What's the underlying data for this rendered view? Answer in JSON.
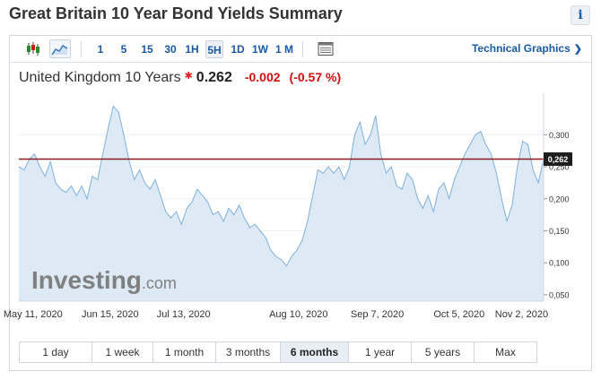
{
  "page": {
    "title": "Great Britain 10 Year Bond Yields Summary",
    "info_label": "i"
  },
  "toolbar": {
    "chart_type_icons": [
      "candlestick-icon",
      "area-chart-icon"
    ],
    "active_chart_type": "area-chart-icon",
    "timeframes": [
      "1",
      "5",
      "15",
      "30",
      "1H",
      "5H",
      "1D",
      "1W",
      "1 M"
    ],
    "active_timeframe": "5H",
    "table_icon": "table-icon",
    "technical_link": "Technical Graphics",
    "technical_chevron": "❯"
  },
  "quote": {
    "instrument": "United Kingdom 10 Years",
    "star": "✱",
    "last": "0.262",
    "change": "-0.002",
    "change_pct": "(-0.57 %)"
  },
  "watermark": {
    "brand": "Investing",
    "suffix": ".com"
  },
  "chart_data": {
    "type": "area",
    "y_ticks": [
      "0,300",
      "0,250",
      "0,200",
      "0,150",
      "0,100",
      "0,050"
    ],
    "y_tick_values": [
      0.3,
      0.25,
      0.2,
      0.15,
      0.1,
      0.05
    ],
    "ylim": [
      0.04,
      0.365
    ],
    "x_ticks": [
      "May 11, 2020",
      "Jun 15, 2020",
      "Jul 13, 2020",
      "Aug 10, 2020",
      "Sep 7, 2020",
      "Oct 5, 2020",
      "Nov 2, 2020"
    ],
    "x_tick_positions": [
      0.027,
      0.174,
      0.314,
      0.533,
      0.683,
      0.839,
      0.958
    ],
    "current_value": 0.262,
    "current_label": "0,262",
    "series": [
      {
        "points": [
          [
            0.0,
            0.25
          ],
          [
            0.01,
            0.245
          ],
          [
            0.02,
            0.262
          ],
          [
            0.03,
            0.27
          ],
          [
            0.04,
            0.25
          ],
          [
            0.05,
            0.235
          ],
          [
            0.06,
            0.258
          ],
          [
            0.07,
            0.225
          ],
          [
            0.08,
            0.215
          ],
          [
            0.09,
            0.21
          ],
          [
            0.1,
            0.22
          ],
          [
            0.11,
            0.205
          ],
          [
            0.12,
            0.22
          ],
          [
            0.13,
            0.2
          ],
          [
            0.14,
            0.235
          ],
          [
            0.15,
            0.23
          ],
          [
            0.16,
            0.27
          ],
          [
            0.17,
            0.31
          ],
          [
            0.18,
            0.345
          ],
          [
            0.19,
            0.335
          ],
          [
            0.2,
            0.3
          ],
          [
            0.21,
            0.26
          ],
          [
            0.22,
            0.23
          ],
          [
            0.23,
            0.245
          ],
          [
            0.24,
            0.225
          ],
          [
            0.25,
            0.215
          ],
          [
            0.26,
            0.23
          ],
          [
            0.27,
            0.205
          ],
          [
            0.28,
            0.18
          ],
          [
            0.29,
            0.17
          ],
          [
            0.3,
            0.18
          ],
          [
            0.31,
            0.16
          ],
          [
            0.32,
            0.185
          ],
          [
            0.33,
            0.195
          ],
          [
            0.34,
            0.215
          ],
          [
            0.35,
            0.205
          ],
          [
            0.36,
            0.195
          ],
          [
            0.37,
            0.175
          ],
          [
            0.38,
            0.18
          ],
          [
            0.39,
            0.165
          ],
          [
            0.4,
            0.185
          ],
          [
            0.41,
            0.175
          ],
          [
            0.42,
            0.19
          ],
          [
            0.43,
            0.17
          ],
          [
            0.44,
            0.155
          ],
          [
            0.45,
            0.16
          ],
          [
            0.46,
            0.15
          ],
          [
            0.47,
            0.14
          ],
          [
            0.48,
            0.12
          ],
          [
            0.49,
            0.11
          ],
          [
            0.5,
            0.105
          ],
          [
            0.51,
            0.095
          ],
          [
            0.52,
            0.11
          ],
          [
            0.53,
            0.12
          ],
          [
            0.54,
            0.135
          ],
          [
            0.55,
            0.165
          ],
          [
            0.56,
            0.205
          ],
          [
            0.57,
            0.245
          ],
          [
            0.58,
            0.24
          ],
          [
            0.59,
            0.25
          ],
          [
            0.6,
            0.24
          ],
          [
            0.61,
            0.25
          ],
          [
            0.62,
            0.23
          ],
          [
            0.63,
            0.25
          ],
          [
            0.64,
            0.3
          ],
          [
            0.65,
            0.32
          ],
          [
            0.66,
            0.285
          ],
          [
            0.67,
            0.3
          ],
          [
            0.68,
            0.33
          ],
          [
            0.69,
            0.27
          ],
          [
            0.7,
            0.24
          ],
          [
            0.71,
            0.25
          ],
          [
            0.72,
            0.22
          ],
          [
            0.73,
            0.215
          ],
          [
            0.74,
            0.24
          ],
          [
            0.75,
            0.23
          ],
          [
            0.76,
            0.2
          ],
          [
            0.77,
            0.185
          ],
          [
            0.78,
            0.205
          ],
          [
            0.79,
            0.18
          ],
          [
            0.8,
            0.215
          ],
          [
            0.81,
            0.225
          ],
          [
            0.82,
            0.2
          ],
          [
            0.83,
            0.23
          ],
          [
            0.84,
            0.25
          ],
          [
            0.85,
            0.27
          ],
          [
            0.86,
            0.285
          ],
          [
            0.87,
            0.3
          ],
          [
            0.88,
            0.305
          ],
          [
            0.89,
            0.285
          ],
          [
            0.9,
            0.27
          ],
          [
            0.91,
            0.24
          ],
          [
            0.92,
            0.2
          ],
          [
            0.93,
            0.165
          ],
          [
            0.94,
            0.19
          ],
          [
            0.95,
            0.25
          ],
          [
            0.96,
            0.29
          ],
          [
            0.97,
            0.285
          ],
          [
            0.98,
            0.245
          ],
          [
            0.99,
            0.225
          ],
          [
            1.0,
            0.262
          ]
        ]
      }
    ]
  },
  "colors": {
    "area_fill": "#dde9f5",
    "line": "#7fb0db",
    "current_line": "#8b1c1c",
    "current_badge": "#1d1d1d",
    "link_blue": "#1a5aa6",
    "negative": "#d01010"
  },
  "periods": [
    {
      "label": "1 day",
      "width": 82
    },
    {
      "label": "1 week",
      "width": 68
    },
    {
      "label": "1 month",
      "width": 70
    },
    {
      "label": "3 months",
      "width": 72
    },
    {
      "label": "6 months",
      "width": 76
    },
    {
      "label": "1 year",
      "width": 70
    },
    {
      "label": "5 years",
      "width": 70
    },
    {
      "label": "Max",
      "width": 70
    }
  ],
  "active_period": "6 months"
}
